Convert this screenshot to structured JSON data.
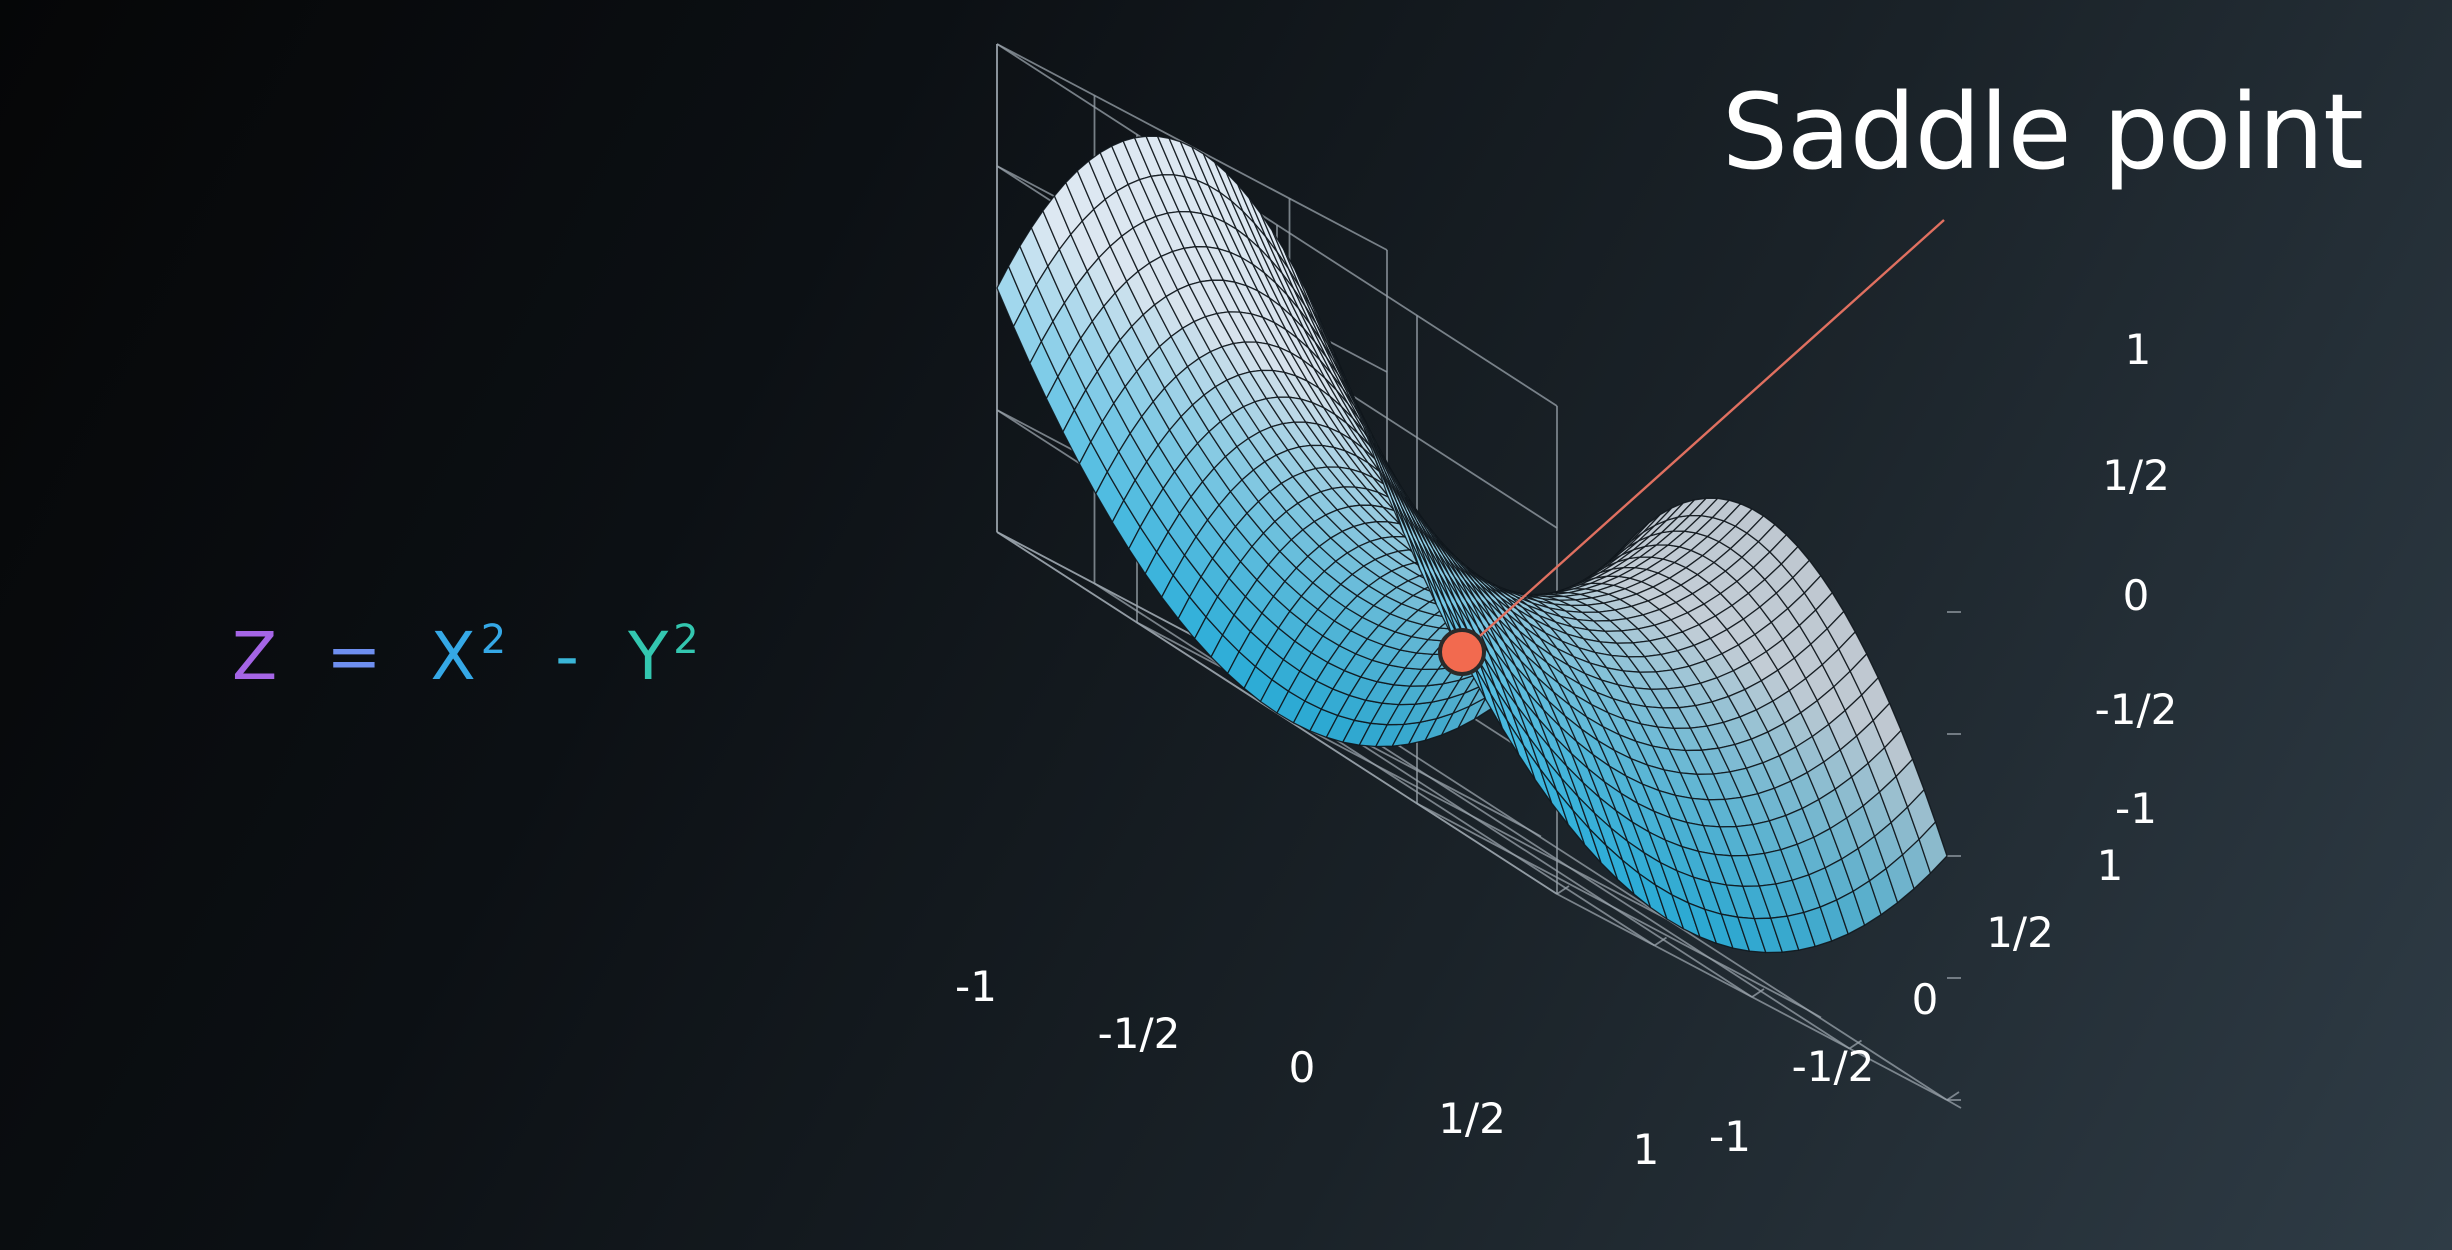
{
  "equation": {
    "z": "Z",
    "equals": "=",
    "x": "X",
    "x_exp": "2",
    "minus": "-",
    "y": "Y",
    "y_exp": "2",
    "colors": {
      "z": "#a565e6",
      "equals": "#6e8ff0",
      "x": "#35a8e6",
      "minus": "#3ab6d8",
      "y": "#33c7b0"
    }
  },
  "annotation": {
    "label": "Saddle point",
    "marker_color": "#f26a4f",
    "leader_color": "#e07060"
  },
  "surface": {
    "function": "z = x^2 - y^2",
    "high_color": "#dde8f2",
    "low_color": "#2eb7e4",
    "mesh_color": "#10161c"
  },
  "axes": {
    "x_ticks": [
      "-1",
      "-1/2",
      "0",
      "1/2",
      "1"
    ],
    "y_ticks": [
      "-1",
      "-1/2",
      "0",
      "1/2",
      "1"
    ],
    "z_ticks": [
      "1",
      "1/2",
      "0",
      "-1/2",
      "-1"
    ],
    "range": [
      -1,
      1
    ],
    "grid": true
  }
}
